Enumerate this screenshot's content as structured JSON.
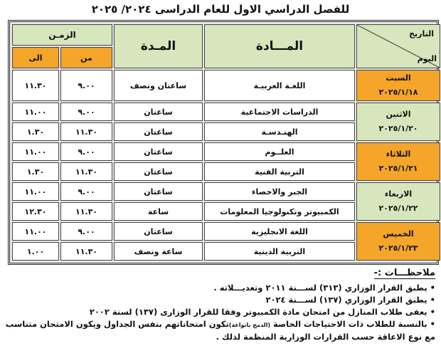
{
  "title": "للفصل الدراسي الاول للعام الدراسى ٢٠٢٤/ ٢٠٢٥",
  "headers": {
    "date": "التاريخ",
    "day": "اليوم",
    "subject": "المـــادة",
    "duration": "المـدة",
    "time": "الزمـن",
    "from": "من",
    "to": "الى"
  },
  "colors": {
    "header": "#d7e6bd",
    "accent": "#f4a52a"
  },
  "days": [
    {
      "day": "السبت",
      "date": "٢٠٢٥/١/١٨",
      "color": "orange",
      "exams": [
        {
          "subject": "اللغـة العربيـة",
          "duration": "ساعتان ونصف",
          "from": "٩.٠٠",
          "to": "١١.٣٠"
        }
      ]
    },
    {
      "day": "الاثنين",
      "date": "٢٠٢٥/١/٢٠",
      "color": "green",
      "exams": [
        {
          "subject": "الدراسات الاجتماعية",
          "duration": "ساعتان",
          "from": "٩.٠٠",
          "to": "١١.٠٠"
        },
        {
          "subject": "الهنـدسـة",
          "duration": "ساعتان",
          "from": "١١.٣٠",
          "to": "١.٣٠"
        }
      ]
    },
    {
      "day": "الثلاثاء",
      "date": "٢٠٢٥/١/٢١",
      "color": "orange",
      "exams": [
        {
          "subject": "العلــوم",
          "duration": "ساعتان",
          "from": "٩.٠٠",
          "to": "١١.٠٠"
        },
        {
          "subject": "التربية الفنية",
          "duration": "ساعتان",
          "from": "١١.٣٠",
          "to": "١.٣٠"
        }
      ]
    },
    {
      "day": "الاربعاء",
      "date": "٢٠٢٥/١/٢٢",
      "color": "green",
      "exams": [
        {
          "subject": "الجبر والاحصاء",
          "duration": "ساعتان",
          "from": "٩.٠٠",
          "to": "١١.٠٠"
        },
        {
          "subject": "الكمبيوتر وتكنولوجيا المعلومات",
          "duration": "ساعة",
          "from": "١١.٣٠",
          "to": "١٢.٣٠"
        }
      ]
    },
    {
      "day": "الخميس",
      "date": "٢٠٢٥/١/٢٣",
      "color": "orange",
      "exams": [
        {
          "subject": "اللغة الانجليزية",
          "duration": "ساعتان",
          "from": "٩.٠٠",
          "to": "١١.٠٠"
        },
        {
          "subject": "التربية الدينية",
          "duration": "ساعة ونصف",
          "from": "١١.٣٠",
          "to": "١.٠٠"
        }
      ]
    }
  ],
  "notes": {
    "heading": "ملاحظـــات :-",
    "items": [
      "يطبق القرار الوزاري (٣١٣) لســـنة ٢٠١١ وتعديـــلاته .",
      "يطبق القرار الوزاري (١٣٧) لســـنة ٢٠٢٤",
      "يعفى طلاب المنازل من امتحان مادة الكمبيوتر وفقا للقرار الوزارى (١٣٧) لسنة ٢٠٠٢",
      "بالنسبة للطلاب ذات الاحتياجات الخاصة",
      "(الدمج بانواعة)",
      "تكون امتحاناتهم بنفس الجداول ويكون الامتحان متناسب مع نوع الاعاقة حسب القرارات الوزارية المنظمة لذلك ."
    ]
  }
}
